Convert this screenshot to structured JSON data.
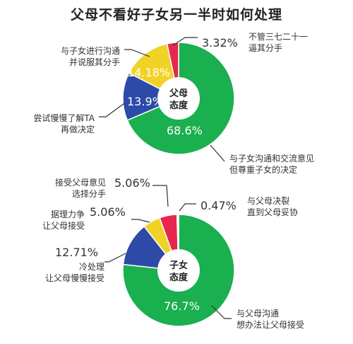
{
  "title": "父母不看好子女另一半时如何处理",
  "chart_data": [
    {
      "type": "pie",
      "center_label": [
        "父母",
        "态度"
      ],
      "slices": [
        {
          "value": 68.6,
          "label": "68.6%",
          "description": [
            "与子女沟通和交流意见",
            "但尊重子女的决定"
          ],
          "color": "#1aaf4f"
        },
        {
          "value": 13.9,
          "label": "13.9%",
          "description": [
            "尝试慢慢了解TA",
            "再做决定"
          ],
          "color": "#2d4aa8"
        },
        {
          "value": 14.18,
          "label": "14.18%",
          "description": [
            "与子女进行沟通",
            "并说服其分手"
          ],
          "color": "#f2d227"
        },
        {
          "value": 3.32,
          "label": "3.32%",
          "description": [
            "不管三七二十一",
            "逼其分手"
          ],
          "color": "#e8264f"
        }
      ]
    },
    {
      "type": "pie",
      "center_label": [
        "子女",
        "态度"
      ],
      "slices": [
        {
          "value": 76.7,
          "label": "76.7%",
          "description": [
            "与父母沟通",
            "想办法让父母接受"
          ],
          "color": "#1aaf4f"
        },
        {
          "value": 12.71,
          "label": "12.71%",
          "description": [
            "冷处理",
            "让父母慢慢接受"
          ],
          "color": "#2d4aa8"
        },
        {
          "value": 5.06,
          "label": "5.06%",
          "description": [
            "据理力争",
            "让父母接受"
          ],
          "color": "#f2d227"
        },
        {
          "value": 5.06,
          "label": "5.06%",
          "description": [
            "接受父母意见",
            "选择分手"
          ],
          "color": "#e8264f"
        },
        {
          "value": 0.47,
          "label": "0.47%",
          "description": [
            "与父母决裂",
            "直到父母妥协"
          ],
          "color": "#dddddd"
        }
      ]
    }
  ]
}
